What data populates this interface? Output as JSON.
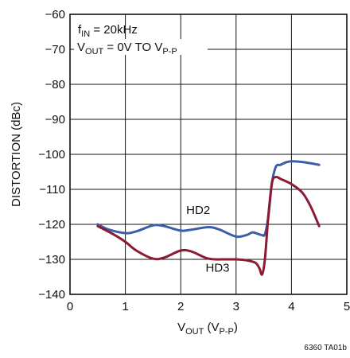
{
  "chart_data": {
    "type": "line",
    "xlim": [
      0,
      5
    ],
    "ylim": [
      -140,
      -60
    ],
    "x_ticks": [
      "0",
      "1",
      "2",
      "3",
      "4",
      "5"
    ],
    "y_ticks": [
      "−60",
      "−70",
      "−80",
      "−90",
      "−100",
      "−110",
      "−120",
      "−130",
      "−140"
    ],
    "grid": true,
    "xlabel_main": "V",
    "xlabel_sub": "OUT",
    "xlabel_paren_main": " (V",
    "xlabel_paren_sub": "P-P",
    "xlabel_close": ")",
    "ylabel": "DISTORTION (dBc)",
    "condition_1_main": "f",
    "condition_1_sub": "IN",
    "condition_1_rest": " = 20kHz",
    "condition_2_main": "V",
    "condition_2_sub": "OUT",
    "condition_2_rest": " = 0V TO V",
    "condition_2_sub2": "P-P",
    "figure_code": "6360 TA01b",
    "series": [
      {
        "name": "HD2",
        "color": "#3a5ea8",
        "label_x": 2.1,
        "label_y": -117,
        "points": [
          [
            0.5,
            -120
          ],
          [
            0.7,
            -121.5
          ],
          [
            1.0,
            -122.5
          ],
          [
            1.2,
            -122
          ],
          [
            1.5,
            -120.3
          ],
          [
            1.7,
            -120.5
          ],
          [
            2.0,
            -121.8
          ],
          [
            2.2,
            -121.5
          ],
          [
            2.5,
            -120.8
          ],
          [
            2.7,
            -121.5
          ],
          [
            3.0,
            -123.5
          ],
          [
            3.2,
            -123
          ],
          [
            3.3,
            -122.3
          ],
          [
            3.45,
            -123
          ],
          [
            3.52,
            -122.8
          ],
          [
            3.58,
            -118
          ],
          [
            3.65,
            -108
          ],
          [
            3.72,
            -103.5
          ],
          [
            3.8,
            -103
          ],
          [
            3.9,
            -102.3
          ],
          [
            4.0,
            -102
          ],
          [
            4.2,
            -102.2
          ],
          [
            4.5,
            -103
          ]
        ]
      },
      {
        "name": "HD3",
        "color": "#8b1a32",
        "label_x": 2.45,
        "label_y": -133.5,
        "points": [
          [
            0.5,
            -120.5
          ],
          [
            0.8,
            -123
          ],
          [
            1.0,
            -125
          ],
          [
            1.2,
            -127.5
          ],
          [
            1.5,
            -129.8
          ],
          [
            1.7,
            -129.5
          ],
          [
            2.0,
            -127.5
          ],
          [
            2.2,
            -127.8
          ],
          [
            2.5,
            -129.8
          ],
          [
            2.8,
            -130
          ],
          [
            3.0,
            -130
          ],
          [
            3.2,
            -130.3
          ],
          [
            3.35,
            -131
          ],
          [
            3.42,
            -132.5
          ],
          [
            3.47,
            -134.3
          ],
          [
            3.52,
            -130
          ],
          [
            3.58,
            -118
          ],
          [
            3.65,
            -108
          ],
          [
            3.72,
            -106.5
          ],
          [
            3.8,
            -107
          ],
          [
            4.0,
            -108.5
          ],
          [
            4.2,
            -111
          ],
          [
            4.35,
            -115
          ],
          [
            4.5,
            -120.5
          ]
        ]
      }
    ]
  }
}
